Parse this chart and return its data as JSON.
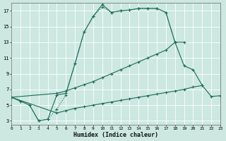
{
  "xlabel": "Humidex (Indice chaleur)",
  "bg_color": "#cce8e0",
  "line_color": "#1a6b5a",
  "xlim": [
    0,
    23
  ],
  "ylim": [
    2.5,
    18.0
  ],
  "xticks": [
    0,
    1,
    2,
    3,
    4,
    5,
    6,
    7,
    8,
    9,
    10,
    11,
    12,
    13,
    14,
    15,
    16,
    17,
    18,
    19,
    20,
    21,
    22,
    23
  ],
  "yticks": [
    3,
    5,
    7,
    9,
    11,
    13,
    15,
    17
  ],
  "curve1_x": [
    0,
    1,
    2,
    3,
    4,
    5,
    6,
    7,
    8,
    9,
    10,
    11,
    12,
    13,
    14,
    15,
    16,
    17,
    18,
    19,
    20,
    21
  ],
  "curve1_y": [
    6.0,
    5.5,
    5.0,
    3.0,
    3.2,
    6.3,
    6.5,
    10.3,
    14.3,
    16.3,
    17.8,
    16.8,
    17.0,
    17.1,
    17.3,
    17.3,
    17.3,
    16.8,
    13.0,
    10.0,
    9.5,
    7.5
  ],
  "curve1_style": "solid",
  "curve2_x": [
    0,
    1,
    2,
    3,
    4,
    5,
    6,
    7,
    8,
    9,
    10,
    11,
    12,
    13,
    14,
    15,
    16,
    17,
    18
  ],
  "curve2_y": [
    6.0,
    5.5,
    5.0,
    3.0,
    3.2,
    4.5,
    6.3,
    10.3,
    14.3,
    16.3,
    17.5,
    16.8,
    17.0,
    17.1,
    17.3,
    17.3,
    17.3,
    16.8,
    13.0
  ],
  "curve2_style": "dotted",
  "curve3_x": [
    0,
    5,
    6,
    7,
    8,
    9,
    10,
    11,
    12,
    13,
    14,
    15,
    16,
    17,
    18,
    19
  ],
  "curve3_y": [
    6.0,
    6.5,
    6.8,
    7.2,
    7.6,
    8.0,
    8.5,
    9.0,
    9.5,
    10.0,
    10.5,
    11.0,
    11.5,
    12.0,
    13.0,
    13.0
  ],
  "curve3_style": "solid",
  "curve4_x": [
    0,
    5,
    6,
    7,
    8,
    9,
    10,
    11,
    12,
    13,
    14,
    15,
    16,
    17,
    18,
    19,
    20,
    21,
    22,
    23
  ],
  "curve4_y": [
    6.0,
    4.0,
    4.3,
    4.6,
    4.8,
    5.0,
    5.2,
    5.4,
    5.6,
    5.8,
    6.0,
    6.2,
    6.4,
    6.6,
    6.8,
    7.0,
    7.3,
    7.5,
    6.1,
    6.2
  ],
  "curve4_style": "solid"
}
